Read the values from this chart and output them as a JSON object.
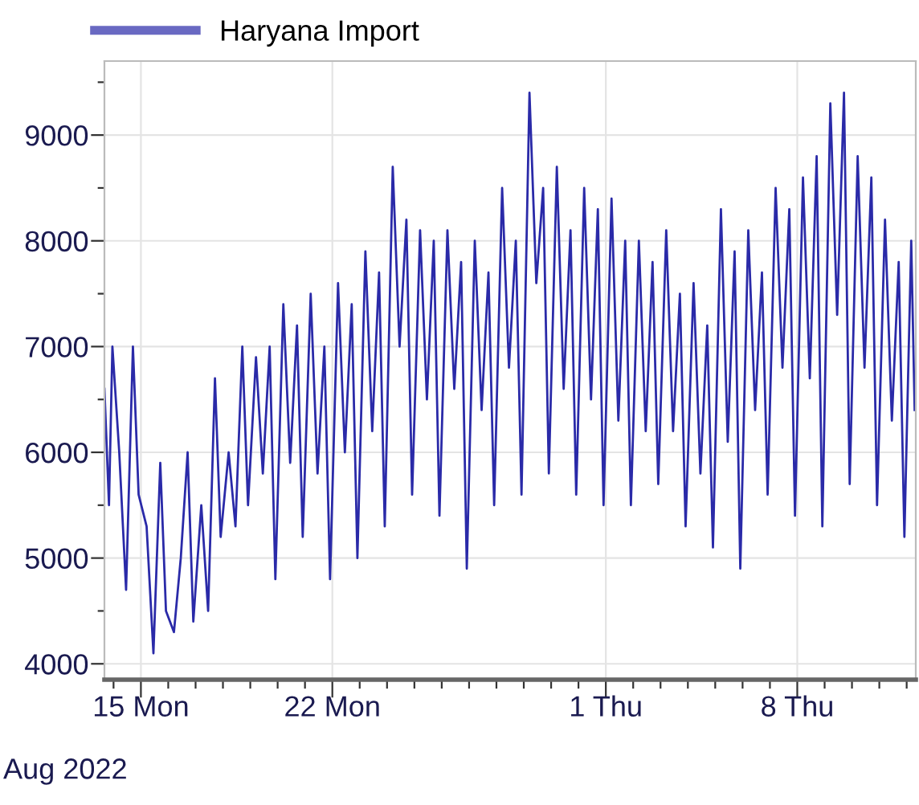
{
  "chart_data": {
    "type": "line",
    "x": [
      "2022-08-13T16:00",
      "2022-08-13T20:00",
      "2022-08-13T23:00",
      "2022-08-14T05:00",
      "2022-08-14T11:00",
      "2022-08-14T17:00",
      "2022-08-14T22:00",
      "2022-08-15T05:00",
      "2022-08-15T11:00",
      "2022-08-15T17:00",
      "2022-08-15T22:00",
      "2022-08-16T05:00",
      "2022-08-16T11:00",
      "2022-08-16T17:00",
      "2022-08-16T22:00",
      "2022-08-17T05:00",
      "2022-08-17T11:00",
      "2022-08-17T17:00",
      "2022-08-17T22:00",
      "2022-08-18T05:00",
      "2022-08-18T11:00",
      "2022-08-18T17:00",
      "2022-08-18T22:00",
      "2022-08-19T05:00",
      "2022-08-19T11:00",
      "2022-08-19T17:00",
      "2022-08-19T22:00",
      "2022-08-20T05:00",
      "2022-08-20T11:00",
      "2022-08-20T17:00",
      "2022-08-20T22:00",
      "2022-08-21T05:00",
      "2022-08-21T11:00",
      "2022-08-21T17:00",
      "2022-08-21T22:00",
      "2022-08-22T05:00",
      "2022-08-22T11:00",
      "2022-08-22T17:00",
      "2022-08-22T22:00",
      "2022-08-23T05:00",
      "2022-08-23T11:00",
      "2022-08-23T17:00",
      "2022-08-23T22:00",
      "2022-08-24T05:00",
      "2022-08-24T11:00",
      "2022-08-24T17:00",
      "2022-08-24T22:00",
      "2022-08-25T05:00",
      "2022-08-25T11:00",
      "2022-08-25T17:00",
      "2022-08-25T22:00",
      "2022-08-26T05:00",
      "2022-08-26T11:00",
      "2022-08-26T17:00",
      "2022-08-26T22:00",
      "2022-08-27T05:00",
      "2022-08-27T11:00",
      "2022-08-27T17:00",
      "2022-08-27T22:00",
      "2022-08-28T05:00",
      "2022-08-28T11:00",
      "2022-08-28T17:00",
      "2022-08-28T22:00",
      "2022-08-29T05:00",
      "2022-08-29T11:00",
      "2022-08-29T17:00",
      "2022-08-29T22:00",
      "2022-08-30T05:00",
      "2022-08-30T11:00",
      "2022-08-30T17:00",
      "2022-08-30T22:00",
      "2022-08-31T05:00",
      "2022-08-31T11:00",
      "2022-08-31T17:00",
      "2022-08-31T22:00",
      "2022-09-01T05:00",
      "2022-09-01T11:00",
      "2022-09-01T17:00",
      "2022-09-01T22:00",
      "2022-09-02T05:00",
      "2022-09-02T11:00",
      "2022-09-02T17:00",
      "2022-09-02T22:00",
      "2022-09-03T05:00",
      "2022-09-03T11:00",
      "2022-09-03T17:00",
      "2022-09-03T22:00",
      "2022-09-04T05:00",
      "2022-09-04T11:00",
      "2022-09-04T17:00",
      "2022-09-04T22:00",
      "2022-09-05T05:00",
      "2022-09-05T11:00",
      "2022-09-05T17:00",
      "2022-09-05T22:00",
      "2022-09-06T05:00",
      "2022-09-06T11:00",
      "2022-09-06T17:00",
      "2022-09-06T22:00",
      "2022-09-07T05:00",
      "2022-09-07T11:00",
      "2022-09-07T17:00",
      "2022-09-07T22:00",
      "2022-09-08T05:00",
      "2022-09-08T11:00",
      "2022-09-08T17:00",
      "2022-09-08T22:00",
      "2022-09-09T05:00",
      "2022-09-09T11:00",
      "2022-09-09T17:00",
      "2022-09-09T22:00",
      "2022-09-10T05:00",
      "2022-09-10T11:00",
      "2022-09-10T17:00",
      "2022-09-10T22:00",
      "2022-09-11T05:00",
      "2022-09-11T11:00",
      "2022-09-11T17:00",
      "2022-09-11T22:00",
      "2022-09-12T04:00",
      "2022-09-12T07:00"
    ],
    "series": [
      {
        "name": "Haryana Import",
        "color": "#2a2aa8",
        "values": [
          6600,
          5500,
          7000,
          6000,
          4700,
          7000,
          5600,
          5300,
          4100,
          5900,
          4500,
          4300,
          5000,
          6000,
          4400,
          5500,
          4500,
          6700,
          5200,
          6000,
          5300,
          7000,
          5500,
          6900,
          5800,
          7000,
          4800,
          7400,
          5900,
          7200,
          5200,
          7500,
          5800,
          7000,
          4800,
          7600,
          6000,
          7400,
          5000,
          7900,
          6200,
          7700,
          5300,
          8700,
          7000,
          8200,
          5600,
          8100,
          6500,
          8000,
          5400,
          8100,
          6600,
          7800,
          4900,
          8000,
          6400,
          7700,
          5500,
          8500,
          6800,
          8000,
          5600,
          9400,
          7600,
          8500,
          5800,
          8700,
          6600,
          8100,
          5600,
          8500,
          6500,
          8300,
          5500,
          8400,
          6300,
          8000,
          5500,
          8000,
          6200,
          7800,
          5700,
          8100,
          6200,
          7500,
          5300,
          7600,
          5800,
          7200,
          5100,
          8300,
          6100,
          7900,
          4900,
          8100,
          6400,
          7700,
          5600,
          8500,
          6800,
          8300,
          5400,
          8600,
          6700,
          8800,
          5300,
          9300,
          7300,
          9400,
          5700,
          8800,
          6800,
          8600,
          5500,
          8200,
          6300,
          7800,
          5200,
          8000,
          6400
        ]
      }
    ],
    "xlim": [
      "2022-08-13T16:00",
      "2022-09-12T08:00"
    ],
    "xticks": [
      {
        "value": "2022-08-14",
        "label": null
      },
      {
        "value": "2022-08-15",
        "label": "15 Mon"
      },
      {
        "value": "2022-08-16",
        "label": null
      },
      {
        "value": "2022-08-17",
        "label": null
      },
      {
        "value": "2022-08-18",
        "label": null
      },
      {
        "value": "2022-08-19",
        "label": null
      },
      {
        "value": "2022-08-20",
        "label": null
      },
      {
        "value": "2022-08-21",
        "label": null
      },
      {
        "value": "2022-08-22",
        "label": "22 Mon"
      },
      {
        "value": "2022-08-23",
        "label": null
      },
      {
        "value": "2022-08-24",
        "label": null
      },
      {
        "value": "2022-08-25",
        "label": null
      },
      {
        "value": "2022-08-26",
        "label": null
      },
      {
        "value": "2022-08-27",
        "label": null
      },
      {
        "value": "2022-08-28",
        "label": null
      },
      {
        "value": "2022-08-29",
        "label": null
      },
      {
        "value": "2022-08-30",
        "label": null
      },
      {
        "value": "2022-08-31",
        "label": null
      },
      {
        "value": "2022-09-01",
        "label": "1 Thu"
      },
      {
        "value": "2022-09-02",
        "label": null
      },
      {
        "value": "2022-09-03",
        "label": null
      },
      {
        "value": "2022-09-04",
        "label": null
      },
      {
        "value": "2022-09-05",
        "label": null
      },
      {
        "value": "2022-09-06",
        "label": null
      },
      {
        "value": "2022-09-07",
        "label": null
      },
      {
        "value": "2022-09-08",
        "label": "8 Thu"
      },
      {
        "value": "2022-09-09",
        "label": null
      },
      {
        "value": "2022-09-10",
        "label": null
      },
      {
        "value": "2022-09-11",
        "label": null
      },
      {
        "value": "2022-09-12",
        "label": null
      }
    ],
    "ylim": [
      3850,
      9700
    ],
    "yticks": [
      4000,
      {
        "value": 4500,
        "label": null
      },
      5000,
      {
        "value": 5500,
        "label": null
      },
      6000,
      {
        "value": 6500,
        "label": null
      },
      7000,
      {
        "value": 7500,
        "label": null
      },
      8000,
      {
        "value": 8500,
        "label": null
      },
      9000,
      {
        "value": 9500,
        "label": null
      }
    ],
    "annotations": [
      "Aug 2022"
    ],
    "grid": true,
    "legend": "top left",
    "line_style": "solid",
    "marker": "none"
  }
}
